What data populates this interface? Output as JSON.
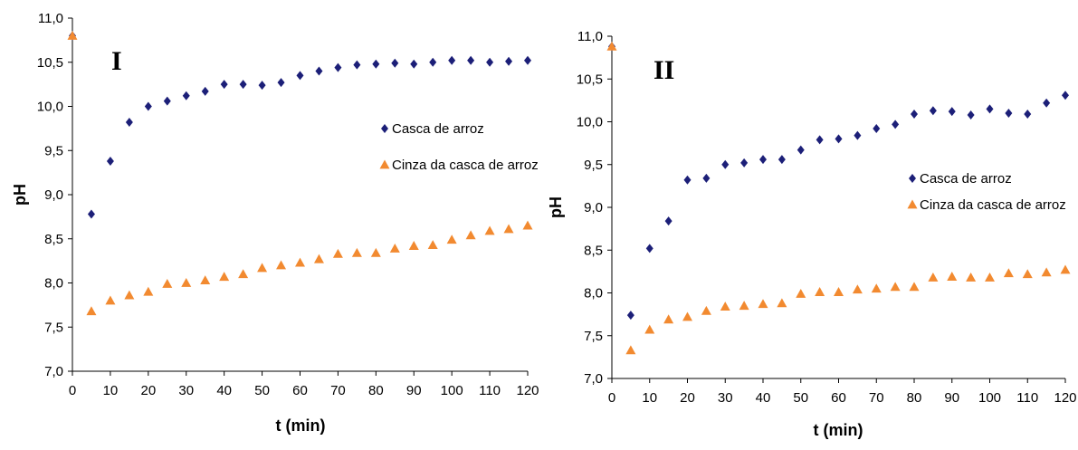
{
  "colors": {
    "casca": "#1c1f78",
    "cinza": "#f28a30",
    "axis": "#000000"
  },
  "chart_data": [
    {
      "type": "scatter",
      "panel_label": "I",
      "xlabel": "t (min)",
      "ylabel": "pH",
      "xlim": [
        0,
        120
      ],
      "ylim": [
        7.0,
        11.0
      ],
      "xticks": [
        "0",
        "10",
        "20",
        "30",
        "40",
        "50",
        "60",
        "70",
        "80",
        "90",
        "100",
        "110",
        "120"
      ],
      "yticks": [
        "7,0",
        "7,5",
        "8,0",
        "8,5",
        "9,0",
        "9,5",
        "10,0",
        "10,5",
        "11,0"
      ],
      "grid": false,
      "legend_position": "right",
      "series": [
        {
          "name": "Casca de arroz",
          "marker": "diamond",
          "x": [
            0,
            5,
            10,
            15,
            20,
            25,
            30,
            35,
            40,
            45,
            50,
            55,
            60,
            65,
            70,
            75,
            80,
            85,
            90,
            95,
            100,
            105,
            110,
            115,
            120
          ],
          "y": [
            10.8,
            8.78,
            9.38,
            9.82,
            10.0,
            10.06,
            10.12,
            10.17,
            10.25,
            10.25,
            10.24,
            10.27,
            10.35,
            10.4,
            10.44,
            10.47,
            10.48,
            10.49,
            10.48,
            10.5,
            10.52,
            10.52,
            10.5,
            10.51,
            10.52
          ]
        },
        {
          "name": "Cinza da casca de arroz",
          "marker": "triangle",
          "x": [
            0,
            5,
            10,
            15,
            20,
            25,
            30,
            35,
            40,
            45,
            50,
            55,
            60,
            65,
            70,
            75,
            80,
            85,
            90,
            95,
            100,
            105,
            110,
            115,
            120
          ],
          "y": [
            10.8,
            7.68,
            7.8,
            7.86,
            7.9,
            7.99,
            8.0,
            8.03,
            8.07,
            8.1,
            8.17,
            8.2,
            8.23,
            8.27,
            8.33,
            8.34,
            8.34,
            8.39,
            8.42,
            8.43,
            8.49,
            8.54,
            8.59,
            8.61,
            8.65
          ]
        }
      ]
    },
    {
      "type": "scatter",
      "panel_label": "II",
      "xlabel": "t (min)",
      "ylabel": "pH",
      "xlim": [
        0,
        120
      ],
      "ylim": [
        7.0,
        11.0
      ],
      "xticks": [
        "0",
        "10",
        "20",
        "30",
        "40",
        "50",
        "60",
        "70",
        "80",
        "90",
        "100",
        "110",
        "120"
      ],
      "yticks": [
        "7,0",
        "7,5",
        "8,0",
        "8,5",
        "9,0",
        "9,5",
        "10,0",
        "10,5",
        "11,0"
      ],
      "grid": false,
      "legend_position": "right",
      "series": [
        {
          "name": "Casca de arroz",
          "marker": "diamond",
          "x": [
            0,
            5,
            10,
            15,
            20,
            25,
            30,
            35,
            40,
            45,
            50,
            55,
            60,
            65,
            70,
            75,
            80,
            85,
            90,
            95,
            100,
            105,
            110,
            115,
            120
          ],
          "y": [
            10.88,
            7.74,
            8.52,
            8.84,
            9.32,
            9.34,
            9.5,
            9.52,
            9.56,
            9.56,
            9.67,
            9.79,
            9.8,
            9.84,
            9.92,
            9.97,
            10.09,
            10.13,
            10.12,
            10.08,
            10.15,
            10.1,
            10.09,
            10.22,
            10.31
          ]
        },
        {
          "name": "Cinza da casca de arroz",
          "marker": "triangle",
          "x": [
            0,
            5,
            10,
            15,
            20,
            25,
            30,
            35,
            40,
            45,
            50,
            55,
            60,
            65,
            70,
            75,
            80,
            85,
            90,
            95,
            100,
            105,
            110,
            115,
            120
          ],
          "y": [
            10.88,
            7.33,
            7.57,
            7.69,
            7.72,
            7.79,
            7.84,
            7.85,
            7.87,
            7.88,
            7.99,
            8.01,
            8.01,
            8.04,
            8.05,
            8.07,
            8.07,
            8.18,
            8.19,
            8.18,
            8.18,
            8.23,
            8.22,
            8.24,
            8.27
          ]
        }
      ]
    }
  ]
}
